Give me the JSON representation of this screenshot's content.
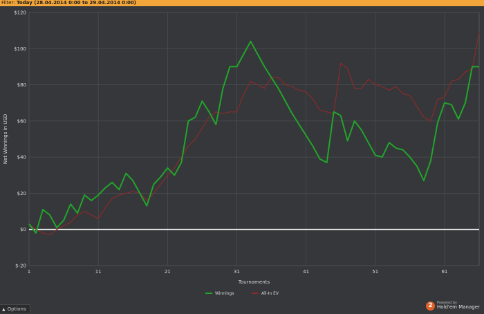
{
  "filter": {
    "label": "Filter:",
    "value": "Today (28.04.2014 0:00 to 29.04.2014 0:00)"
  },
  "footer": {
    "options_label": "Options"
  },
  "branding": {
    "powered_by": "Powered by",
    "product": "Hold'em Manager",
    "logo_text": "2"
  },
  "colors": {
    "background": "#35373a",
    "filter_bar": "#f2a53a",
    "winnings": "#22a52a",
    "allin_ev": "#8a2b2b",
    "zero_line": "#ffffff"
  },
  "chart_data": {
    "type": "line",
    "xlabel": "Tournaments",
    "ylabel": "Net Winnings in USD",
    "xlim": [
      1,
      66
    ],
    "ylim": [
      -20,
      120
    ],
    "x_ticks": [
      1,
      11,
      21,
      31,
      41,
      51,
      61
    ],
    "y_ticks": [
      -20,
      0,
      20,
      40,
      60,
      80,
      100,
      120
    ],
    "y_tick_labels": [
      "$-20",
      "$0",
      "$20",
      "$40",
      "$60",
      "$80",
      "$100",
      "$120"
    ],
    "grid": true,
    "legend_position": "bottom-center",
    "series": [
      {
        "name": "Winnings",
        "color": "#22a52a",
        "x": [
          1,
          2,
          3,
          4,
          5,
          6,
          7,
          8,
          9,
          10,
          11,
          12,
          13,
          14,
          15,
          16,
          17,
          18,
          19,
          20,
          21,
          22,
          23,
          24,
          25,
          26,
          27,
          28,
          29,
          30,
          31,
          32,
          33,
          34,
          35,
          36,
          37,
          38,
          39,
          40,
          41,
          42,
          43,
          44,
          45,
          46,
          47,
          48,
          49,
          50,
          51,
          52,
          53,
          54,
          55,
          56,
          57,
          58,
          59,
          60,
          61,
          62,
          63,
          64,
          65,
          66
        ],
        "values": [
          3,
          -2,
          11,
          8,
          1,
          5,
          14,
          9,
          19,
          16,
          19,
          23,
          26,
          22,
          31,
          27,
          20,
          13,
          25,
          29,
          34,
          30,
          37,
          60,
          62,
          71,
          65,
          58,
          78,
          90,
          90,
          97,
          104,
          97,
          90,
          84,
          78,
          71,
          64,
          58,
          52,
          46,
          39,
          37,
          65,
          63,
          49,
          60,
          55,
          48,
          41,
          40,
          48,
          45,
          44,
          40,
          35,
          27,
          38,
          59,
          70,
          69,
          61,
          70,
          90,
          90
        ]
      },
      {
        "name": "All-In EV",
        "color": "#8a2b2b",
        "x": [
          1,
          2,
          3,
          4,
          5,
          6,
          7,
          8,
          9,
          10,
          11,
          12,
          13,
          14,
          15,
          16,
          17,
          18,
          19,
          20,
          21,
          22,
          23,
          24,
          25,
          26,
          27,
          28,
          29,
          30,
          31,
          32,
          33,
          34,
          35,
          36,
          37,
          38,
          39,
          40,
          41,
          42,
          43,
          44,
          45,
          46,
          47,
          48,
          49,
          50,
          51,
          52,
          53,
          54,
          55,
          56,
          57,
          58,
          59,
          60,
          61,
          62,
          63,
          64,
          65,
          66
        ],
        "values": [
          3,
          0,
          -2,
          -3,
          0,
          2,
          4,
          8,
          10,
          8,
          6,
          12,
          17,
          19,
          20,
          21,
          20,
          16,
          20,
          25,
          30,
          34,
          40,
          46,
          50,
          56,
          62,
          65,
          64,
          65,
          65,
          75,
          82,
          80,
          78,
          84,
          84,
          80,
          79,
          77,
          76,
          72,
          66,
          65,
          64,
          92,
          89,
          78,
          78,
          83,
          80,
          79,
          77,
          79,
          75,
          74,
          68,
          62,
          60,
          72,
          73,
          82,
          83,
          87,
          89,
          109
        ]
      }
    ]
  }
}
